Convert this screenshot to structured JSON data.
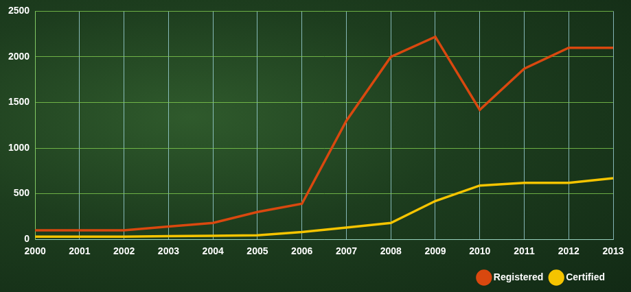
{
  "chart_data": {
    "type": "line",
    "categories": [
      "2000",
      "2001",
      "2002",
      "2003",
      "2004",
      "2005",
      "2006",
      "2007",
      "2008",
      "2009",
      "2010",
      "2011",
      "2012",
      "2013"
    ],
    "series": [
      {
        "name": "Registered",
        "color": "#d9480f",
        "values": [
          100,
          100,
          100,
          140,
          180,
          300,
          390,
          1300,
          2000,
          2220,
          1420,
          1870,
          2100,
          2100
        ]
      },
      {
        "name": "Certified",
        "color": "#f5c400",
        "values": [
          30,
          30,
          30,
          35,
          40,
          45,
          80,
          130,
          180,
          420,
          590,
          620,
          620,
          670
        ]
      }
    ],
    "ylim": [
      0,
      2500
    ],
    "yticks": [
      0,
      500,
      1000,
      1500,
      2000,
      2500
    ],
    "grid": true,
    "legend": "bottom-right"
  }
}
